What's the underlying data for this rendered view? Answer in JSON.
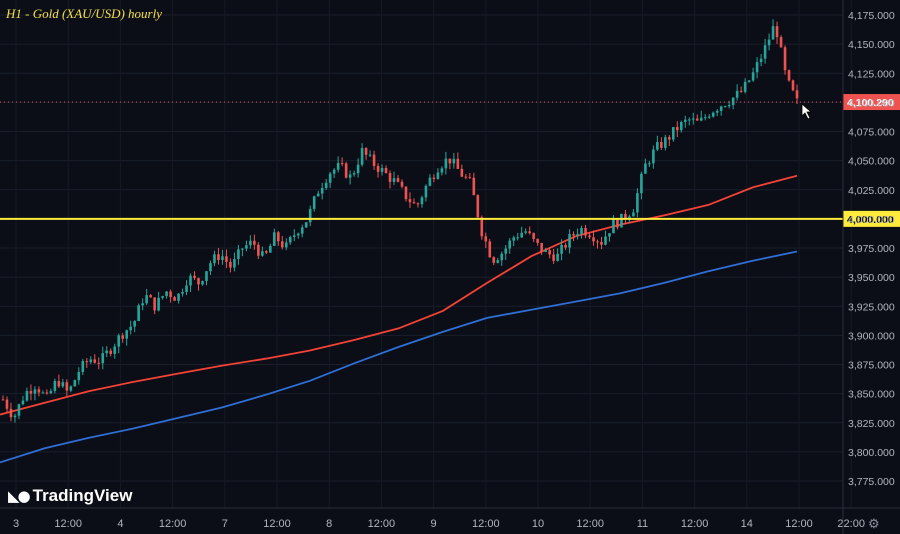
{
  "title": "H1 - Gold (XAU/USD) hourly",
  "brand": {
    "name": "TradingView"
  },
  "icons": {
    "settings": "settings-gear-icon",
    "cursor": "arrow-cursor-icon"
  },
  "colors": {
    "background": "#0b0e17",
    "up_candle": "#26a69a",
    "down_candle": "#ef5350",
    "ma_fast": "#f44336",
    "ma_slow": "#2f6fd6",
    "level_line": "#ffeb3b",
    "price_label": "#ef5350",
    "axis_text": "#b2b5be"
  },
  "chart_data": {
    "type": "candlestick",
    "title": "H1 - Gold (XAU/USD) hourly",
    "ylim": [
      3765,
      4185
    ],
    "y_ticks": [
      3775,
      3800,
      3825,
      3850,
      3875,
      3900,
      3925,
      3950,
      3975,
      4000,
      4025,
      4050,
      4075,
      4100,
      4125,
      4150,
      4175
    ],
    "y_tick_labels": [
      "3,775.000",
      "3,800.000",
      "3,825.000",
      "3,850.000",
      "3,875.000",
      "3,900.000",
      "3,925.000",
      "3,950.000",
      "3,975.000",
      "4,000.000",
      "4,025.000",
      "4,050.000",
      "4,075.000",
      "4,100.000",
      "4,125.000",
      "4,150.000",
      "4,175.000"
    ],
    "x_tick_labels": [
      "3",
      "12:00",
      "4",
      "12:00",
      "7",
      "12:00",
      "8",
      "12:00",
      "9",
      "12:00",
      "10",
      "12:00",
      "11",
      "12:00",
      "14",
      "12:00",
      "22:00"
    ],
    "grid": true,
    "current_price": 4100.29,
    "current_price_label": "4,100.290",
    "horizontal_level": 4000,
    "horizontal_level_label": "4,000.000",
    "close_path": [
      3845,
      3830,
      3850,
      3858,
      3845,
      3862,
      3850,
      3870,
      3880,
      3878,
      3890,
      3902,
      3910,
      3935,
      3925,
      3938,
      3932,
      3950,
      3945,
      3962,
      3970,
      3958,
      3975,
      3980,
      3965,
      3985,
      3975,
      3990,
      4000,
      4025,
      4040,
      4045,
      4035,
      4058,
      4048,
      4040,
      4032,
      4020,
      4010,
      4030,
      4045,
      4052,
      4040,
      4030,
      3990,
      3965,
      3972,
      3985,
      3990,
      3978,
      3970,
      3968,
      3982,
      3992,
      3988,
      3980,
      3995,
      4000,
      4010,
      4045,
      4060,
      4068,
      4078,
      4085,
      4082,
      4092,
      4098,
      4103,
      4110,
      4125,
      4145,
      4168,
      4120,
      4100
    ],
    "series": [
      {
        "name": "",
        "type": "moving-average",
        "values": [
          3832,
          3842,
          3852,
          3860,
          3867,
          3874,
          3880,
          3887,
          3896,
          3906,
          3921,
          3945,
          3968,
          3985,
          3995,
          4003,
          4012,
          4027,
          4037
        ]
      },
      {
        "name": "",
        "type": "moving-average",
        "values": [
          3791,
          3803,
          3812,
          3820,
          3829,
          3838,
          3849,
          3861,
          3876,
          3890,
          3903,
          3915,
          3922,
          3929,
          3936,
          3945,
          3955,
          3964,
          3972
        ]
      }
    ]
  }
}
